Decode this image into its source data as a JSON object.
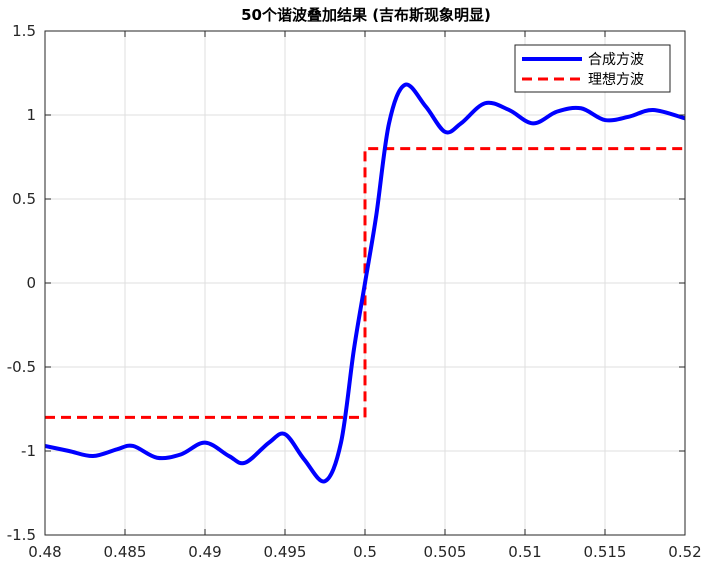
{
  "chart_data": {
    "type": "line",
    "title": "50个谐波叠加结果 (吉布斯现象明显)",
    "xlabel": "",
    "ylabel": "",
    "xlim": [
      0.48,
      0.52
    ],
    "ylim": [
      -1.5,
      1.5
    ],
    "xticks": [
      0.48,
      0.485,
      0.49,
      0.495,
      0.5,
      0.505,
      0.51,
      0.515,
      0.52
    ],
    "xtick_labels": [
      "0.48",
      "0.485",
      "0.49",
      "0.495",
      "0.5",
      "0.505",
      "0.51",
      "0.515",
      "0.52"
    ],
    "yticks": [
      1.5,
      1,
      0.5,
      0,
      -0.5,
      -1,
      -1.5
    ],
    "ytick_labels": [
      "1.5",
      "1",
      "0.5",
      "0",
      "-0.5",
      "-1",
      "-1.5"
    ],
    "grid": true,
    "legend_position": "top-right",
    "series": [
      {
        "name": "合成方波",
        "color": "#0000ff",
        "style": "solid",
        "x": [
          0.48,
          0.4815,
          0.483,
          0.4845,
          0.4855,
          0.487,
          0.4885,
          0.49,
          0.4915,
          0.4925,
          0.494,
          0.495,
          0.4962,
          0.4975,
          0.4985,
          0.4993,
          0.5,
          0.5007,
          0.5015,
          0.5025,
          0.5038,
          0.505,
          0.506,
          0.5075,
          0.509,
          0.5105,
          0.512,
          0.5135,
          0.515,
          0.5165,
          0.518,
          0.52
        ],
        "y": [
          -0.97,
          -1.0,
          -1.03,
          -0.99,
          -0.97,
          -1.04,
          -1.02,
          -0.95,
          -1.03,
          -1.07,
          -0.95,
          -0.9,
          -1.05,
          -1.18,
          -0.95,
          -0.4,
          0.0,
          0.4,
          0.95,
          1.18,
          1.05,
          0.9,
          0.95,
          1.07,
          1.03,
          0.95,
          1.02,
          1.04,
          0.97,
          0.99,
          1.03,
          0.98
        ]
      },
      {
        "name": "理想方波",
        "color": "#ff0000",
        "style": "dashed",
        "x": [
          0.48,
          0.5,
          0.5,
          0.52
        ],
        "y": [
          -0.8,
          -0.8,
          0.8,
          0.8
        ]
      }
    ]
  }
}
